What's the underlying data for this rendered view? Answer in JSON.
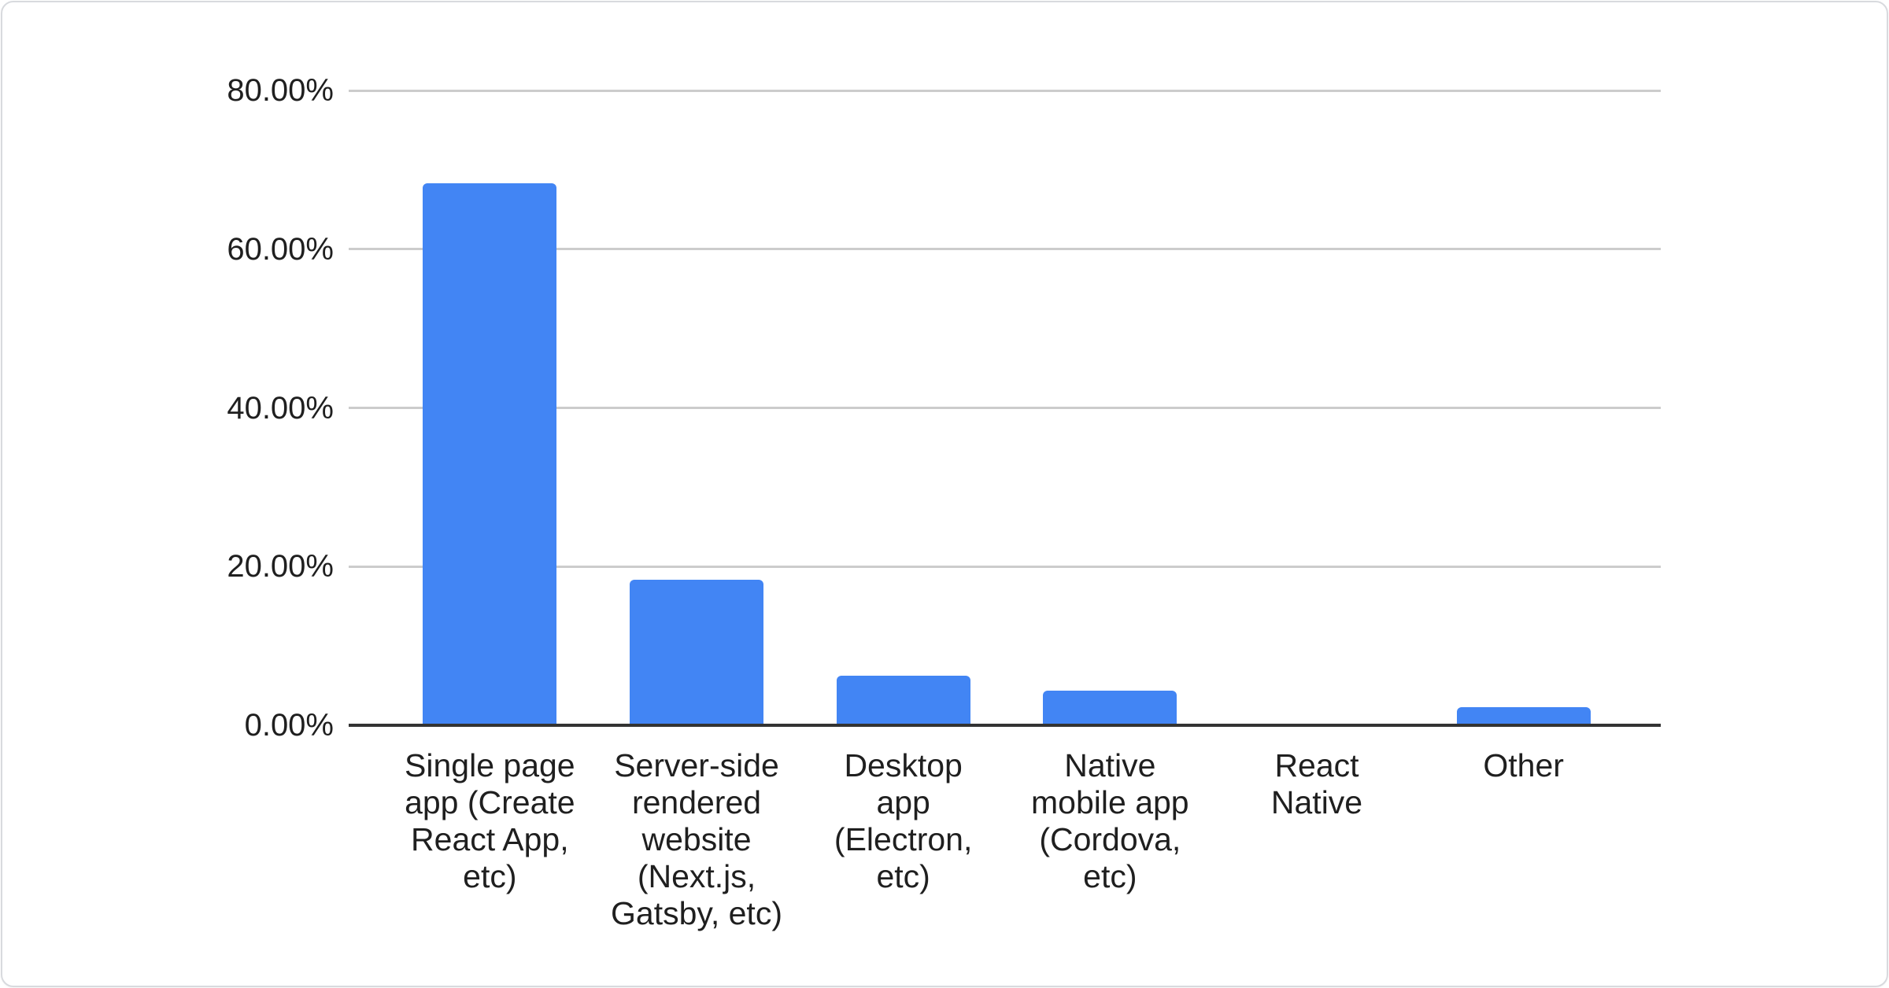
{
  "card": {
    "background_color": "#ffffff",
    "border_color": "#d8dade"
  },
  "chart_data": {
    "type": "bar",
    "title": "",
    "xlabel": "",
    "ylabel": "",
    "categories": [
      "Single page\napp (Create\nReact App,\netc)",
      "Server-side\nrendered\nwebsite\n(Next.js,\nGatsby, etc)",
      "Desktop\napp\n(Electron,\netc)",
      "Native\nmobile app\n(Cordova,\netc)",
      "React\nNative",
      "Other"
    ],
    "values": [
      68.3,
      18.3,
      6.2,
      4.4,
      0,
      2.3
    ],
    "value_unit": "%",
    "ylim": [
      0,
      80
    ],
    "yticks": [
      {
        "value": 80,
        "label": "80.00%"
      },
      {
        "value": 60,
        "label": "60.00%"
      },
      {
        "value": 40,
        "label": "40.00%"
      },
      {
        "value": 20,
        "label": "20.00%"
      },
      {
        "value": 0,
        "label": "0.00%"
      }
    ],
    "grid": true,
    "legend_position": "none",
    "bar_color": "#4285f4",
    "gridline_color": "#cccccc",
    "baseline_color": "#333333",
    "label_color": "#1f1f1f"
  }
}
